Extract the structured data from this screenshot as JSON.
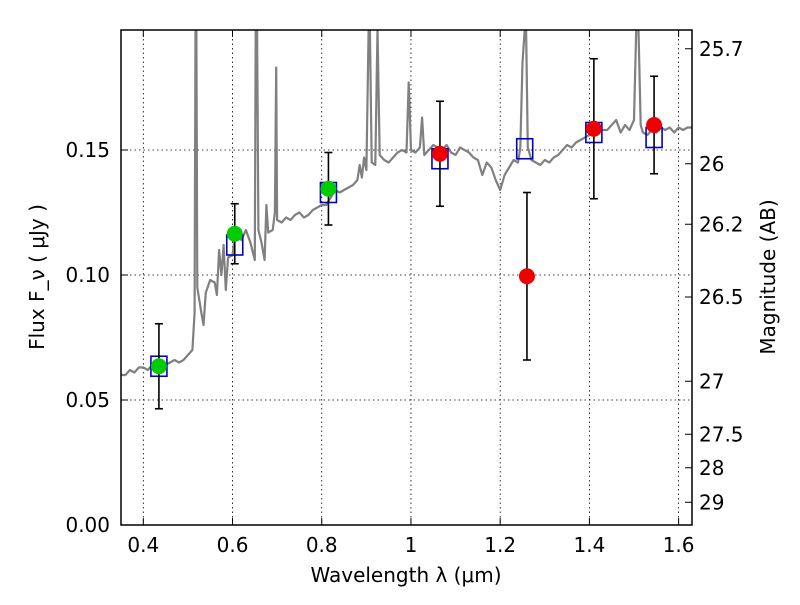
{
  "chart_data": {
    "type": "scatter",
    "title": "",
    "xlabel": "Wavelength  λ (μm)",
    "ylabel": "Flux  F_ν  ( μJy )",
    "ylabel_right": "Magnitude (AB)",
    "xlim": [
      0.35,
      1.63
    ],
    "ylim": [
      0.0,
      0.198
    ],
    "grid": true,
    "x_ticks": [
      0.4,
      0.6,
      0.8,
      1.0,
      1.2,
      1.4,
      1.6
    ],
    "x_tick_labels": [
      "0.4",
      "0.6",
      "0.8",
      "1",
      "1.2",
      "1.4",
      "1.6"
    ],
    "y_ticks": [
      0.0,
      0.05,
      0.1,
      0.15
    ],
    "y_tick_labels": [
      "0.00",
      "0.05",
      "0.10",
      "0.15"
    ],
    "right_ticks": [
      {
        "label": "25.7",
        "flux": 0.1905
      },
      {
        "label": "26",
        "flux": 0.1445
      },
      {
        "label": "26.2",
        "flux": 0.1203
      },
      {
        "label": "26.5",
        "flux": 0.0912
      },
      {
        "label": "27",
        "flux": 0.0575
      },
      {
        "label": "27.5",
        "flux": 0.0363
      },
      {
        "label": "28",
        "flux": 0.0229
      },
      {
        "label": "29",
        "flux": 0.0091
      }
    ],
    "model_spectrum": {
      "color": "#808080",
      "points": [
        [
          0.35,
          0.06
        ],
        [
          0.36,
          0.06
        ],
        [
          0.37,
          0.062
        ],
        [
          0.38,
          0.061
        ],
        [
          0.39,
          0.063
        ],
        [
          0.4,
          0.063
        ],
        [
          0.41,
          0.062
        ],
        [
          0.42,
          0.064
        ],
        [
          0.43,
          0.063
        ],
        [
          0.44,
          0.065
        ],
        [
          0.45,
          0.064
        ],
        [
          0.46,
          0.065
        ],
        [
          0.47,
          0.066
        ],
        [
          0.48,
          0.065
        ],
        [
          0.49,
          0.066
        ],
        [
          0.5,
          0.068
        ],
        [
          0.51,
          0.07
        ],
        [
          0.515,
          0.085
        ],
        [
          0.517,
          0.198
        ],
        [
          0.519,
          0.198
        ],
        [
          0.521,
          0.095
        ],
        [
          0.53,
          0.085
        ],
        [
          0.535,
          0.08
        ],
        [
          0.54,
          0.093
        ],
        [
          0.55,
          0.098
        ],
        [
          0.56,
          0.097
        ],
        [
          0.565,
          0.092
        ],
        [
          0.57,
          0.11
        ],
        [
          0.575,
          0.1
        ],
        [
          0.58,
          0.112
        ],
        [
          0.585,
          0.094
        ],
        [
          0.59,
          0.107
        ],
        [
          0.6,
          0.108
        ],
        [
          0.605,
          0.115
        ],
        [
          0.61,
          0.116
        ],
        [
          0.62,
          0.114
        ],
        [
          0.63,
          0.118
        ],
        [
          0.64,
          0.113
        ],
        [
          0.65,
          0.106
        ],
        [
          0.652,
          0.198
        ],
        [
          0.655,
          0.198
        ],
        [
          0.658,
          0.118
        ],
        [
          0.665,
          0.113
        ],
        [
          0.672,
          0.106
        ],
        [
          0.676,
          0.128
        ],
        [
          0.68,
          0.117
        ],
        [
          0.69,
          0.118
        ],
        [
          0.695,
          0.125
        ],
        [
          0.698,
          0.183
        ],
        [
          0.7,
          0.122
        ],
        [
          0.71,
          0.121
        ],
        [
          0.72,
          0.123
        ],
        [
          0.73,
          0.122
        ],
        [
          0.74,
          0.124
        ],
        [
          0.75,
          0.125
        ],
        [
          0.76,
          0.123
        ],
        [
          0.77,
          0.124
        ],
        [
          0.78,
          0.126
        ],
        [
          0.79,
          0.127
        ],
        [
          0.8,
          0.128
        ],
        [
          0.81,
          0.128
        ],
        [
          0.82,
          0.131
        ],
        [
          0.83,
          0.134
        ],
        [
          0.84,
          0.133
        ],
        [
          0.85,
          0.134
        ],
        [
          0.86,
          0.135
        ],
        [
          0.87,
          0.136
        ],
        [
          0.88,
          0.138
        ],
        [
          0.885,
          0.144
        ],
        [
          0.89,
          0.139
        ],
        [
          0.895,
          0.147
        ],
        [
          0.9,
          0.142
        ],
        [
          0.905,
          0.198
        ],
        [
          0.908,
          0.198
        ],
        [
          0.912,
          0.145
        ],
        [
          0.92,
          0.144
        ],
        [
          0.925,
          0.198
        ],
        [
          0.93,
          0.148
        ],
        [
          0.94,
          0.146
        ],
        [
          0.95,
          0.145
        ],
        [
          0.96,
          0.147
        ],
        [
          0.97,
          0.149
        ],
        [
          0.98,
          0.15
        ],
        [
          0.99,
          0.149
        ],
        [
          0.995,
          0.177
        ],
        [
          1.0,
          0.15
        ],
        [
          1.01,
          0.149
        ],
        [
          1.02,
          0.151
        ],
        [
          1.025,
          0.163
        ],
        [
          1.03,
          0.148
        ],
        [
          1.04,
          0.15
        ],
        [
          1.05,
          0.152
        ],
        [
          1.06,
          0.151
        ],
        [
          1.07,
          0.15
        ],
        [
          1.08,
          0.152
        ],
        [
          1.09,
          0.149
        ],
        [
          1.1,
          0.148
        ],
        [
          1.11,
          0.151
        ],
        [
          1.12,
          0.15
        ],
        [
          1.13,
          0.149
        ],
        [
          1.14,
          0.147
        ],
        [
          1.15,
          0.146
        ],
        [
          1.16,
          0.14
        ],
        [
          1.17,
          0.145
        ],
        [
          1.18,
          0.143
        ],
        [
          1.19,
          0.138
        ],
        [
          1.2,
          0.134
        ],
        [
          1.21,
          0.14
        ],
        [
          1.22,
          0.143
        ],
        [
          1.23,
          0.146
        ],
        [
          1.24,
          0.145
        ],
        [
          1.245,
          0.151
        ],
        [
          1.25,
          0.185
        ],
        [
          1.255,
          0.198
        ],
        [
          1.258,
          0.198
        ],
        [
          1.262,
          0.151
        ],
        [
          1.27,
          0.146
        ],
        [
          1.28,
          0.145
        ],
        [
          1.29,
          0.144
        ],
        [
          1.3,
          0.146
        ],
        [
          1.31,
          0.145
        ],
        [
          1.32,
          0.147
        ],
        [
          1.33,
          0.148
        ],
        [
          1.34,
          0.15
        ],
        [
          1.35,
          0.152
        ],
        [
          1.36,
          0.151
        ],
        [
          1.37,
          0.153
        ],
        [
          1.38,
          0.154
        ],
        [
          1.39,
          0.155
        ],
        [
          1.4,
          0.156
        ],
        [
          1.41,
          0.157
        ],
        [
          1.42,
          0.157
        ],
        [
          1.43,
          0.158
        ],
        [
          1.44,
          0.158
        ],
        [
          1.45,
          0.16
        ],
        [
          1.46,
          0.162
        ],
        [
          1.47,
          0.157
        ],
        [
          1.48,
          0.16
        ],
        [
          1.49,
          0.158
        ],
        [
          1.5,
          0.162
        ],
        [
          1.505,
          0.198
        ],
        [
          1.51,
          0.198
        ],
        [
          1.515,
          0.16
        ],
        [
          1.52,
          0.157
        ],
        [
          1.53,
          0.156
        ],
        [
          1.54,
          0.158
        ],
        [
          1.55,
          0.157
        ],
        [
          1.56,
          0.159
        ],
        [
          1.57,
          0.158
        ],
        [
          1.58,
          0.159
        ],
        [
          1.59,
          0.157
        ],
        [
          1.6,
          0.159
        ],
        [
          1.61,
          0.158
        ],
        [
          1.62,
          0.159
        ],
        [
          1.63,
          0.159
        ]
      ]
    },
    "series": [
      {
        "marker": "square-open",
        "color": "#0000cc",
        "points": [
          {
            "x": 0.435,
            "y": 0.0635
          },
          {
            "x": 0.605,
            "y": 0.112
          },
          {
            "x": 0.815,
            "y": 0.133
          },
          {
            "x": 1.065,
            "y": 0.1465
          },
          {
            "x": 1.255,
            "y": 0.1505
          },
          {
            "x": 1.41,
            "y": 0.157
          },
          {
            "x": 1.545,
            "y": 0.155
          }
        ]
      },
      {
        "marker": "circle",
        "color": "#00cc00",
        "points": [
          {
            "x": 0.435,
            "y": 0.0635,
            "err": 0.017
          },
          {
            "x": 0.605,
            "y": 0.1165,
            "err": 0.012
          },
          {
            "x": 0.815,
            "y": 0.1345,
            "err": 0.0145
          }
        ]
      },
      {
        "marker": "circle",
        "color": "#ee0000",
        "points": [
          {
            "x": 1.065,
            "y": 0.1485,
            "err": 0.021
          },
          {
            "x": 1.26,
            "y": 0.0995,
            "err": 0.0335
          },
          {
            "x": 1.41,
            "y": 0.1585,
            "err": 0.028
          },
          {
            "x": 1.545,
            "y": 0.16,
            "err": 0.0195
          }
        ]
      }
    ]
  }
}
